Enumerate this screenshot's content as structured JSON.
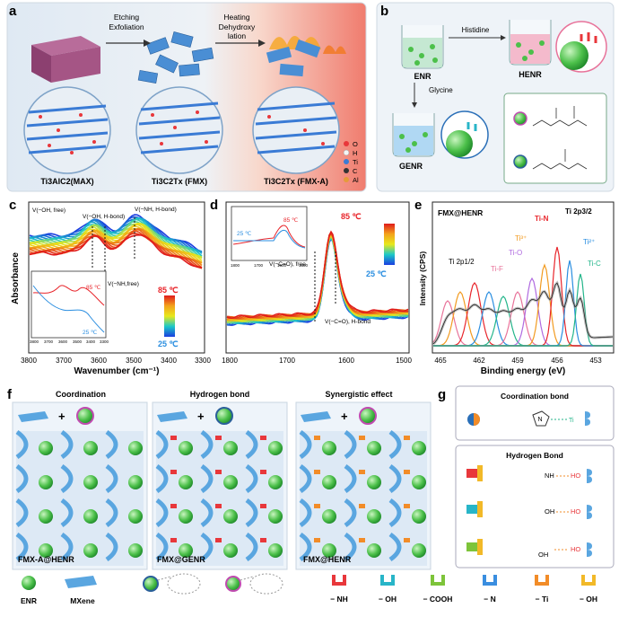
{
  "panel_letters": [
    "a",
    "b",
    "c",
    "d",
    "e",
    "f",
    "g"
  ],
  "panel_a": {
    "step1": [
      "Etching",
      "Exfoliation"
    ],
    "step2": [
      "Heating",
      "Dehydroxy",
      "lation"
    ],
    "labels": [
      "Ti3AlC2(MAX)",
      "Ti3C2Tx (FMX)",
      "Ti3C2Tx (FMX-A)"
    ],
    "legend": [
      {
        "sym": "O",
        "color": "#e8373b"
      },
      {
        "sym": "H",
        "color": "#f5f5f5"
      },
      {
        "sym": "Ti",
        "color": "#3a7bd5"
      },
      {
        "sym": "C",
        "color": "#333333"
      },
      {
        "sym": "Al",
        "color": "#e59b3a"
      }
    ]
  },
  "panel_b": {
    "enr": "ENR",
    "henr": "HENR",
    "genr": "GENR",
    "histidine": "Histidine",
    "glycine": "Glycine"
  },
  "chart_c": {
    "type": "line",
    "xlabel": "Wavenumber (cm⁻¹)",
    "ylabel": "Absorbance",
    "xlim": [
      3800,
      3300
    ],
    "xticks": [
      "3800",
      "3700",
      "3600",
      "3500",
      "3400",
      "3300"
    ],
    "series": [
      {
        "name": "25 ℃"
      },
      {
        "name": "85 ℃"
      }
    ],
    "annotations": [
      "V(−OH, free)",
      "V(−OH, H-bond)",
      "V(−NH, H-bond)",
      "V(−NH,free)"
    ],
    "colorbar": {
      "top": "85 ℃",
      "bottom": "25 ℃"
    },
    "inset": {
      "labels": [
        "85 ℃",
        "25 ℃"
      ],
      "xticks": [
        "3800",
        "3700",
        "3600",
        "3500",
        "3400",
        "3300"
      ]
    }
  },
  "chart_d": {
    "type": "line",
    "xlim": [
      1800,
      1500
    ],
    "xticks": [
      "1800",
      "1700",
      "1600",
      "1500"
    ],
    "annotations": [
      "V(−C=O), free",
      "V(−C=O), H-bond"
    ],
    "temps": {
      "hot": "85 ℃",
      "cold": "25 ℃"
    },
    "inset": {
      "labels": [
        "25 ℃",
        "85 ℃"
      ],
      "xticks": [
        "1800",
        "1700",
        "1600",
        "1500"
      ]
    }
  },
  "chart_e": {
    "type": "line",
    "title": "FMX@HENR",
    "xlabel": "Binding energy (eV)",
    "ylabel": "Intensity (CPS)",
    "xlim": [
      466,
      452
    ],
    "xticks": [
      "465",
      "462",
      "459",
      "456",
      "453"
    ],
    "peaks": [
      {
        "name": "Ti 2p1/2",
        "color": "#222222"
      },
      {
        "name": "Ti-F",
        "color": "#e8739a"
      },
      {
        "name": "Ti-O",
        "color": "#b06be0"
      },
      {
        "name": "Ti³⁺",
        "color": "#f29b20"
      },
      {
        "name": "Ti-N",
        "color": "#e8252b"
      },
      {
        "name": "Ti 2p3/2",
        "color": "#222222"
      },
      {
        "name": "Ti²⁺",
        "color": "#2a8ee0"
      },
      {
        "name": "Ti-C",
        "color": "#23b58a"
      }
    ]
  },
  "panel_f": {
    "titles": [
      "Coordination",
      "Hydrogen bond",
      "Synergistic effect"
    ],
    "names": [
      "FMX-A@HENR",
      "FMX@GENR",
      "FMX@HENR"
    ]
  },
  "panel_g": {
    "title1": "Coordination bond",
    "title2": "Hydrogen Bond",
    "ti": "Ti",
    "groups": [
      "NH",
      "OH",
      "OH"
    ],
    "ho": "HO"
  },
  "legend_bottom": {
    "enr": "ENR",
    "mxene": "MXene",
    "groups": [
      "− NH",
      "− OH",
      "− COOH",
      "− N",
      "− Ti",
      "− OH"
    ],
    "group_colors": [
      "#e8373b",
      "#28b5c8",
      "#7dc43a",
      "#3a8ee0",
      "#f28c28",
      "#f2b928"
    ]
  }
}
